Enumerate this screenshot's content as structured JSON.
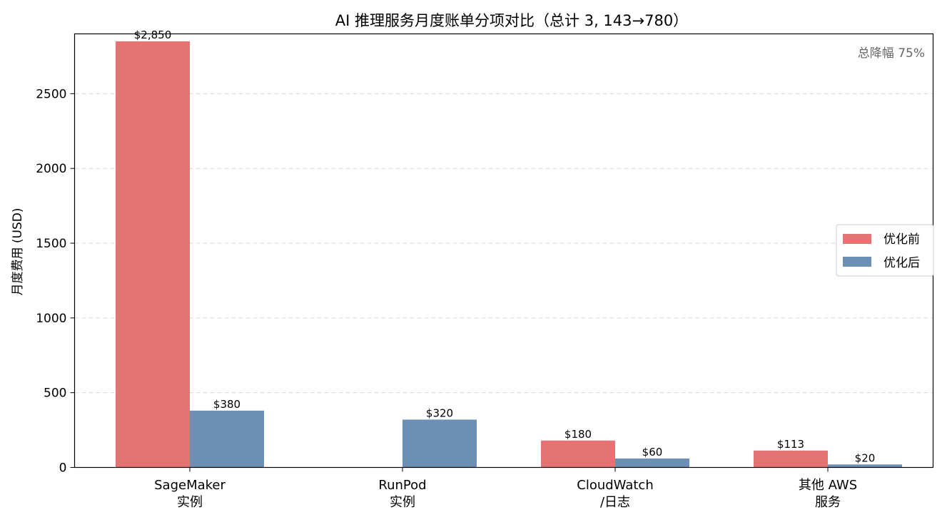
{
  "chart_data": {
    "type": "bar",
    "title": "AI 推理服务月度账单分项对比（总计 3, 143→780）",
    "ylabel": "月度费用 (USD)",
    "xlabel": "",
    "ylim": [
      0,
      2900
    ],
    "yticks": [
      0,
      500,
      1000,
      1500,
      2000,
      2500
    ],
    "grid": "y-dashed",
    "legend_position": "center-right",
    "annotation": "总降幅 75%",
    "categories": [
      [
        "SageMaker",
        "实例"
      ],
      [
        "RunPod",
        "实例"
      ],
      [
        "CloudWatch",
        "/日志"
      ],
      [
        "其他 AWS",
        "服务"
      ]
    ],
    "series": [
      {
        "name": "优化前",
        "color": "#e57373",
        "values": [
          2850,
          0,
          180,
          113
        ],
        "labels": [
          "$2,850",
          "",
          "$180",
          "$113"
        ]
      },
      {
        "name": "优化后",
        "color": "#6b8fb5",
        "values": [
          380,
          320,
          60,
          20
        ],
        "labels": [
          "$380",
          "$320",
          "$60",
          "$20"
        ]
      }
    ]
  }
}
